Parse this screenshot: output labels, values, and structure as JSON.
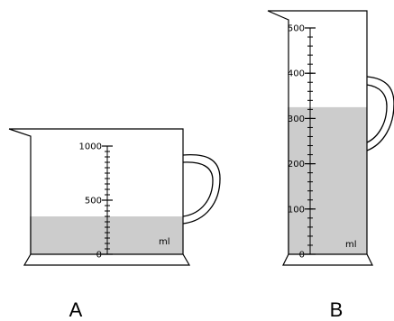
{
  "jug_a": {
    "caption": "A",
    "unit": "ml",
    "max_ml": 1000,
    "fill_ml": 350,
    "labels": [
      "1000",
      "500",
      "0"
    ],
    "label_values": [
      1000,
      500,
      0
    ],
    "minor_step_ml": 50,
    "colors": {
      "liquid": "#cccccc",
      "outline": "#000000"
    }
  },
  "jug_b": {
    "caption": "B",
    "unit": "ml",
    "max_ml": 500,
    "fill_ml": 325,
    "labels": [
      "500",
      "400",
      "300",
      "200",
      "100",
      "0"
    ],
    "label_values": [
      500,
      400,
      300,
      200,
      100,
      0
    ],
    "minor_step_ml": 20,
    "colors": {
      "liquid": "#cccccc",
      "outline": "#000000"
    }
  }
}
